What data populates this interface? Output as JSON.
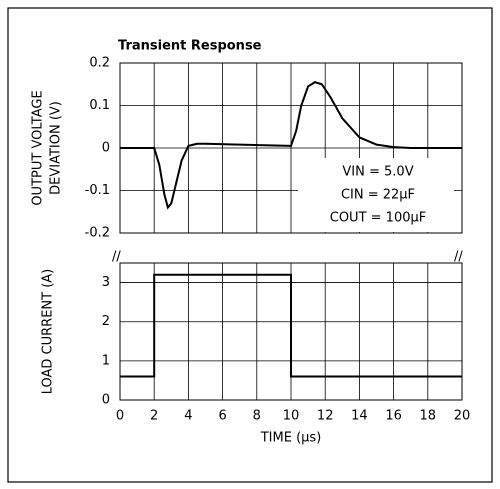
{
  "chart_data": [
    {
      "type": "line",
      "title": "Transient Response",
      "ylabel": [
        "OUTPUT VOLTAGE",
        "DEVIATION (V)"
      ],
      "x": [
        0,
        2,
        2.3,
        2.6,
        2.8,
        3.0,
        3.3,
        3.6,
        4,
        4.5,
        5,
        7,
        10,
        10.3,
        10.6,
        11,
        11.4,
        11.8,
        12.3,
        13,
        14,
        15,
        16,
        17,
        20
      ],
      "series": [
        {
          "name": "Output Voltage Deviation",
          "color": "#000000",
          "values": [
            0,
            0,
            -0.04,
            -0.11,
            -0.14,
            -0.13,
            -0.08,
            -0.03,
            0.005,
            0.01,
            0.01,
            0.008,
            0.005,
            0.04,
            0.1,
            0.145,
            0.155,
            0.15,
            0.12,
            0.07,
            0.025,
            0.008,
            0.002,
            0,
            0
          ]
        }
      ],
      "xlim": [
        0,
        20
      ],
      "xticks": [
        0,
        2,
        4,
        6,
        8,
        10,
        12,
        14,
        16,
        18,
        20
      ],
      "ylim": [
        -0.2,
        0.2
      ],
      "yticks": [
        -0.2,
        -0.1,
        0,
        0.1,
        0.2
      ],
      "grid": true,
      "annotations": [
        "VIN = 5.0V",
        "CIN = 22µF",
        "COUT = 100µF"
      ]
    },
    {
      "type": "line",
      "ylabel": [
        "LOAD CURRENT (A)"
      ],
      "xlabel": "TIME (µs)",
      "x": [
        0,
        2,
        2,
        10,
        10,
        20
      ],
      "series": [
        {
          "name": "Load Current",
          "color": "#000000",
          "values": [
            0.6,
            0.6,
            3.2,
            3.2,
            0.6,
            0.6
          ]
        }
      ],
      "xlim": [
        0,
        20
      ],
      "xticks": [
        0,
        2,
        4,
        6,
        8,
        10,
        12,
        14,
        16,
        18,
        20
      ],
      "ylim": [
        0,
        3.5
      ],
      "yticks": [
        0,
        1,
        2,
        3
      ],
      "grid": true
    }
  ]
}
